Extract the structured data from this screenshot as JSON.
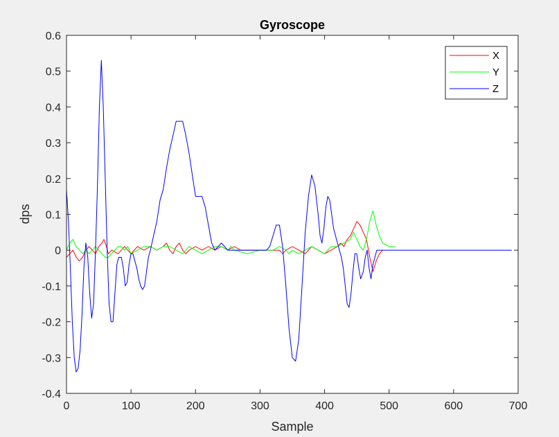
{
  "chart_data": {
    "type": "line",
    "title": "Gyroscope",
    "xlabel": "Sample",
    "ylabel": "dps",
    "xlim": [
      0,
      700
    ],
    "ylim": [
      -0.4,
      0.6
    ],
    "xticks": [
      0,
      100,
      200,
      300,
      400,
      500,
      600,
      700
    ],
    "yticks": [
      -0.4,
      -0.3,
      -0.2,
      -0.1,
      0,
      0.1,
      0.2,
      0.3,
      0.4,
      0.5,
      0.6
    ],
    "xtick_labels": [
      "0",
      "100",
      "200",
      "300",
      "400",
      "500",
      "600",
      "700"
    ],
    "ytick_labels": [
      "-0.4",
      "-0.3",
      "-0.2",
      "-0.1",
      "0",
      "0.1",
      "0.2",
      "0.3",
      "0.4",
      "0.5",
      "0.6"
    ],
    "grid": false,
    "legend_position": "top-right",
    "series": [
      {
        "name": "X",
        "color": "#ff0000",
        "points": [
          [
            0,
            -0.02
          ],
          [
            5,
            -0.01
          ],
          [
            10,
            0
          ],
          [
            15,
            -0.02
          ],
          [
            20,
            -0.03
          ],
          [
            25,
            -0.02
          ],
          [
            30,
            0
          ],
          [
            35,
            0.01
          ],
          [
            40,
            0
          ],
          [
            45,
            -0.01
          ],
          [
            50,
            0.01
          ],
          [
            55,
            0.02
          ],
          [
            58,
            0.03
          ],
          [
            62,
            0.01
          ],
          [
            65,
            -0.01
          ],
          [
            70,
            0
          ],
          [
            80,
            -0.01
          ],
          [
            85,
            0
          ],
          [
            90,
            0.01
          ],
          [
            95,
            0
          ],
          [
            100,
            -0.01
          ],
          [
            105,
            0
          ],
          [
            110,
            0.01
          ],
          [
            120,
            0
          ],
          [
            130,
            0.01
          ],
          [
            140,
            0
          ],
          [
            150,
            0.01
          ],
          [
            155,
            0.02
          ],
          [
            160,
            0
          ],
          [
            165,
            -0.01
          ],
          [
            170,
            0.01
          ],
          [
            175,
            0.02
          ],
          [
            180,
            0
          ],
          [
            185,
            -0.01
          ],
          [
            190,
            0
          ],
          [
            200,
            0.01
          ],
          [
            210,
            0
          ],
          [
            220,
            0.01
          ],
          [
            230,
            0
          ],
          [
            240,
            0.01
          ],
          [
            250,
            0
          ],
          [
            260,
            0.01
          ],
          [
            270,
            0
          ],
          [
            300,
            0
          ],
          [
            330,
            0
          ],
          [
            335,
            -0.01
          ],
          [
            340,
            0
          ],
          [
            350,
            0.01
          ],
          [
            360,
            0
          ],
          [
            370,
            -0.01
          ],
          [
            375,
            0
          ],
          [
            380,
            0.01
          ],
          [
            390,
            0
          ],
          [
            400,
            -0.01
          ],
          [
            410,
            0
          ],
          [
            420,
            0.01
          ],
          [
            425,
            0.02
          ],
          [
            430,
            0.01
          ],
          [
            435,
            0.03
          ],
          [
            440,
            0.04
          ],
          [
            445,
            0.06
          ],
          [
            450,
            0.08
          ],
          [
            455,
            0.07
          ],
          [
            460,
            0.05
          ],
          [
            465,
            0.03
          ],
          [
            470,
            -0.02
          ],
          [
            475,
            -0.06
          ],
          [
            480,
            -0.03
          ],
          [
            485,
            -0.01
          ],
          [
            490,
            0
          ]
        ]
      },
      {
        "name": "Y",
        "color": "#00ff00",
        "points": [
          [
            0,
            0
          ],
          [
            5,
            0.02
          ],
          [
            10,
            0.03
          ],
          [
            15,
            0.01
          ],
          [
            20,
            0
          ],
          [
            25,
            -0.01
          ],
          [
            30,
            0
          ],
          [
            35,
            -0.01
          ],
          [
            40,
            0
          ],
          [
            45,
            0.01
          ],
          [
            50,
            0
          ],
          [
            55,
            -0.01
          ],
          [
            60,
            -0.02
          ],
          [
            65,
            -0.02
          ],
          [
            70,
            -0.01
          ],
          [
            75,
            0
          ],
          [
            80,
            0.01
          ],
          [
            85,
            0.01
          ],
          [
            90,
            0
          ],
          [
            95,
            0.01
          ],
          [
            100,
            -0.01
          ],
          [
            110,
            0
          ],
          [
            120,
            0.01
          ],
          [
            130,
            0.01
          ],
          [
            140,
            0
          ],
          [
            150,
            0.01
          ],
          [
            160,
            0.01
          ],
          [
            170,
            0
          ],
          [
            180,
            -0.01
          ],
          [
            190,
            0.01
          ],
          [
            200,
            0
          ],
          [
            210,
            -0.01
          ],
          [
            220,
            0
          ],
          [
            230,
            0.01
          ],
          [
            240,
            0.01
          ],
          [
            250,
            0
          ],
          [
            255,
            0.01
          ],
          [
            260,
            0
          ],
          [
            280,
            -0.01
          ],
          [
            300,
            0
          ],
          [
            320,
            0
          ],
          [
            330,
            0.01
          ],
          [
            340,
            0
          ],
          [
            345,
            -0.01
          ],
          [
            350,
            0
          ],
          [
            360,
            -0.01
          ],
          [
            370,
            0
          ],
          [
            380,
            0.01
          ],
          [
            390,
            0
          ],
          [
            400,
            -0.01
          ],
          [
            410,
            0.01
          ],
          [
            420,
            0.01
          ],
          [
            430,
            0.02
          ],
          [
            440,
            0.03
          ],
          [
            445,
            0.05
          ],
          [
            450,
            0.03
          ],
          [
            455,
            0.01
          ],
          [
            460,
            0
          ],
          [
            465,
            0.03
          ],
          [
            470,
            0.08
          ],
          [
            475,
            0.11
          ],
          [
            480,
            0.07
          ],
          [
            485,
            0.04
          ],
          [
            490,
            0.02
          ],
          [
            500,
            0.01
          ],
          [
            510,
            0.01
          ]
        ]
      },
      {
        "name": "Z",
        "color": "#0000ff",
        "points": [
          [
            0,
            0.17
          ],
          [
            3,
            0.08
          ],
          [
            6,
            -0.05
          ],
          [
            9,
            -0.2
          ],
          [
            12,
            -0.3
          ],
          [
            15,
            -0.34
          ],
          [
            18,
            -0.33
          ],
          [
            21,
            -0.28
          ],
          [
            24,
            -0.18
          ],
          [
            27,
            -0.05
          ],
          [
            30,
            0.02
          ],
          [
            33,
            -0.02
          ],
          [
            36,
            -0.12
          ],
          [
            39,
            -0.19
          ],
          [
            42,
            -0.15
          ],
          [
            45,
            0
          ],
          [
            48,
            0.18
          ],
          [
            51,
            0.4
          ],
          [
            54,
            0.53
          ],
          [
            57,
            0.4
          ],
          [
            60,
            0.2
          ],
          [
            63,
            0
          ],
          [
            66,
            -0.15
          ],
          [
            69,
            -0.2
          ],
          [
            72,
            -0.2
          ],
          [
            75,
            -0.12
          ],
          [
            78,
            -0.04
          ],
          [
            81,
            -0.02
          ],
          [
            85,
            -0.02
          ],
          [
            88,
            -0.05
          ],
          [
            91,
            -0.1
          ],
          [
            94,
            -0.09
          ],
          [
            97,
            -0.04
          ],
          [
            100,
            -0.01
          ],
          [
            103,
            -0.01
          ],
          [
            106,
            -0.03
          ],
          [
            109,
            -0.05
          ],
          [
            112,
            -0.08
          ],
          [
            115,
            -0.1
          ],
          [
            118,
            -0.11
          ],
          [
            121,
            -0.1
          ],
          [
            124,
            -0.06
          ],
          [
            127,
            -0.02
          ],
          [
            130,
            0
          ],
          [
            135,
            0.04
          ],
          [
            140,
            0.08
          ],
          [
            145,
            0.14
          ],
          [
            150,
            0.17
          ],
          [
            155,
            0.23
          ],
          [
            160,
            0.28
          ],
          [
            165,
            0.32
          ],
          [
            170,
            0.36
          ],
          [
            175,
            0.36
          ],
          [
            180,
            0.36
          ],
          [
            185,
            0.32
          ],
          [
            190,
            0.27
          ],
          [
            195,
            0.21
          ],
          [
            200,
            0.15
          ],
          [
            205,
            0.15
          ],
          [
            210,
            0.15
          ],
          [
            215,
            0.12
          ],
          [
            220,
            0.07
          ],
          [
            225,
            0.02
          ],
          [
            230,
            0
          ],
          [
            235,
            0.01
          ],
          [
            240,
            0.02
          ],
          [
            245,
            0.01
          ],
          [
            250,
            0
          ],
          [
            260,
            0
          ],
          [
            270,
            0
          ],
          [
            280,
            0
          ],
          [
            290,
            0
          ],
          [
            300,
            0
          ],
          [
            310,
            0
          ],
          [
            315,
            0.01
          ],
          [
            320,
            0.04
          ],
          [
            325,
            0.07
          ],
          [
            330,
            0.07
          ],
          [
            335,
            0.01
          ],
          [
            340,
            -0.1
          ],
          [
            345,
            -0.22
          ],
          [
            350,
            -0.3
          ],
          [
            355,
            -0.31
          ],
          [
            360,
            -0.25
          ],
          [
            365,
            -0.1
          ],
          [
            370,
            0.05
          ],
          [
            375,
            0.15
          ],
          [
            380,
            0.21
          ],
          [
            385,
            0.18
          ],
          [
            390,
            0.1
          ],
          [
            393,
            0.04
          ],
          [
            396,
            0.02
          ],
          [
            399,
            0.06
          ],
          [
            402,
            0.12
          ],
          [
            405,
            0.15
          ],
          [
            408,
            0.14
          ],
          [
            411,
            0.1
          ],
          [
            414,
            0.06
          ],
          [
            417,
            0.04
          ],
          [
            420,
            0.02
          ],
          [
            423,
            0
          ],
          [
            426,
            -0.02
          ],
          [
            429,
            -0.05
          ],
          [
            432,
            -0.1
          ],
          [
            435,
            -0.15
          ],
          [
            438,
            -0.16
          ],
          [
            441,
            -0.12
          ],
          [
            444,
            -0.06
          ],
          [
            447,
            -0.01
          ],
          [
            450,
            -0.01
          ],
          [
            453,
            -0.05
          ],
          [
            456,
            -0.08
          ],
          [
            460,
            -0.06
          ],
          [
            463,
            -0.02
          ],
          [
            466,
            0
          ],
          [
            469,
            -0.05
          ],
          [
            472,
            -0.08
          ],
          [
            475,
            -0.04
          ],
          [
            478,
            -0.02
          ],
          [
            481,
            0
          ],
          [
            485,
            0
          ],
          [
            500,
            0
          ],
          [
            550,
            0
          ],
          [
            600,
            0
          ],
          [
            650,
            0
          ],
          [
            690,
            0
          ]
        ]
      }
    ]
  }
}
